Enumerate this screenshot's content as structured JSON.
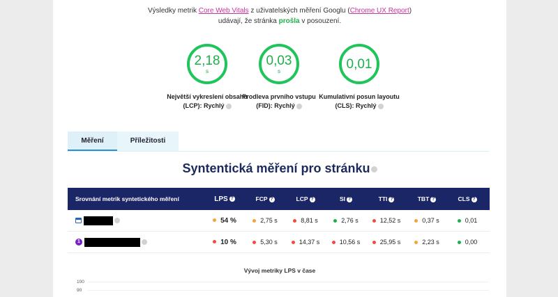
{
  "intro": {
    "line1_pre": "Výsledky metrik ",
    "cwv_link": "Core Web Vitals",
    "line1_mid": " z uživatelských měření Googlu (",
    "crux_link": "Chrome UX Report",
    "line1_post": ")",
    "line2_pre": "udávají, že stránka ",
    "pass_word": "prošla",
    "line2_post": " v posouzení."
  },
  "metrics": [
    {
      "value": "2,18",
      "unit": "s",
      "label_line1": "Největší vykreslení obsahu",
      "label_line2": "(LCP): Rychlý"
    },
    {
      "value": "0,03",
      "unit": "s",
      "label_line1": "Prodleva prvního vstupu",
      "label_line2": "(FID): Rychlý"
    },
    {
      "value": "0,01",
      "unit": "",
      "label_line1": "Kumulativní posun layoutu",
      "label_line2": "(CLS): Rychlý"
    }
  ],
  "tabs": [
    "Měření",
    "Příležitosti"
  ],
  "section_title": "Syntentická měření pro stránku",
  "table": {
    "headers": [
      "Srovnání metrik syntetického měření",
      "LPS",
      "FCP",
      "LCP",
      "SI",
      "TTI",
      "TBT",
      "CLS"
    ],
    "rows": [
      {
        "badge": "",
        "cells": [
          {
            "value": "54 %",
            "status": "o"
          },
          {
            "value": "2,75 s",
            "status": "o"
          },
          {
            "value": "8,81 s",
            "status": "r"
          },
          {
            "value": "2,76 s",
            "status": "g"
          },
          {
            "value": "12,52 s",
            "status": "r"
          },
          {
            "value": "0,37 s",
            "status": "o"
          },
          {
            "value": "0,01",
            "status": "g"
          }
        ]
      },
      {
        "badge": "1",
        "cells": [
          {
            "value": "10 %",
            "status": "r"
          },
          {
            "value": "5,30 s",
            "status": "r"
          },
          {
            "value": "14,37 s",
            "status": "r"
          },
          {
            "value": "10,56 s",
            "status": "r"
          },
          {
            "value": "25,95 s",
            "status": "r"
          },
          {
            "value": "2,23 s",
            "status": "o"
          },
          {
            "value": "0,00",
            "status": "g"
          }
        ]
      }
    ]
  },
  "chart": {
    "title": "Vývoj metriky LPS v čase",
    "y_ticks": [
      "100",
      "90"
    ]
  },
  "colors": {
    "good": "#1fae4b",
    "average": "#f2a33a",
    "poor": "#ef4b3f",
    "header": "#1b2666",
    "accent": "#c8359a"
  }
}
